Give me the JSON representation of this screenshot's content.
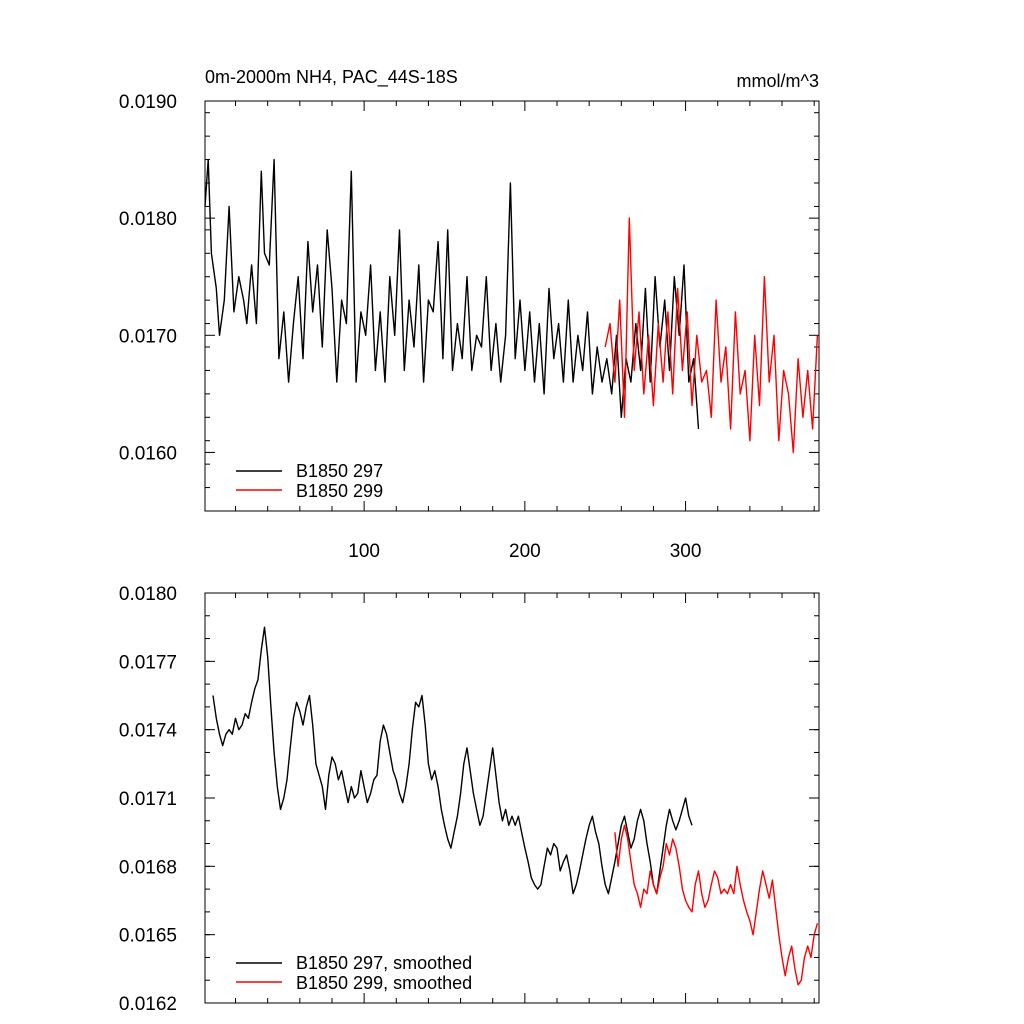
{
  "chart_data": [
    {
      "type": "line",
      "title": "0m-2000m NH4, PAC_44S-18S",
      "units": "mmol/m^3",
      "xlim": [
        1,
        383
      ],
      "ylim": [
        0.0155,
        0.019
      ],
      "x_ticks": [
        100,
        200,
        300
      ],
      "x_tick_labels": [
        "100",
        "200",
        "300"
      ],
      "y_ticks": [
        0.016,
        0.017,
        0.018,
        0.019
      ],
      "y_tick_labels": [
        "0.0160",
        "0.0170",
        "0.0180",
        "0.0190"
      ],
      "legend_placement": "bottom-left",
      "series": [
        {
          "name": "B1850 297",
          "color": "#000000",
          "x": [
            1,
            3,
            5,
            8,
            10,
            13,
            16,
            19,
            22,
            25,
            27,
            30,
            33,
            36,
            38,
            41,
            44,
            47,
            50,
            53,
            56,
            59,
            62,
            65,
            68,
            71,
            74,
            77,
            80,
            83,
            86,
            89,
            92,
            95,
            98,
            101,
            104,
            107,
            110,
            113,
            116,
            119,
            122,
            125,
            128,
            131,
            134,
            137,
            140,
            143,
            146,
            149,
            152,
            155,
            158,
            161,
            164,
            167,
            170,
            173,
            176,
            179,
            182,
            185,
            188,
            191,
            194,
            197,
            200,
            203,
            206,
            209,
            212,
            215,
            218,
            221,
            224,
            227,
            230,
            233,
            236,
            239,
            242,
            245,
            248,
            251,
            254,
            257,
            260,
            263,
            266,
            269,
            272,
            275,
            278,
            281,
            284,
            287,
            290,
            293,
            296,
            299,
            302,
            305,
            308
          ],
          "values": [
            0.0181,
            0.0185,
            0.0177,
            0.0174,
            0.017,
            0.0173,
            0.0181,
            0.0172,
            0.0175,
            0.0173,
            0.0171,
            0.0176,
            0.0171,
            0.0184,
            0.0177,
            0.0176,
            0.0185,
            0.0168,
            0.0172,
            0.0166,
            0.0171,
            0.0175,
            0.0168,
            0.0178,
            0.0172,
            0.0176,
            0.0169,
            0.0179,
            0.0174,
            0.0166,
            0.0173,
            0.0171,
            0.0184,
            0.0166,
            0.0172,
            0.017,
            0.0176,
            0.0167,
            0.0172,
            0.0166,
            0.0175,
            0.017,
            0.0179,
            0.0167,
            0.0173,
            0.0169,
            0.0176,
            0.0166,
            0.0173,
            0.0172,
            0.0178,
            0.0168,
            0.0179,
            0.0167,
            0.0171,
            0.0168,
            0.0175,
            0.0167,
            0.017,
            0.0169,
            0.0175,
            0.0167,
            0.0171,
            0.0166,
            0.017,
            0.0183,
            0.0168,
            0.0173,
            0.0167,
            0.0172,
            0.0166,
            0.0171,
            0.0165,
            0.0174,
            0.0168,
            0.0171,
            0.0166,
            0.0173,
            0.0166,
            0.017,
            0.0167,
            0.0172,
            0.0165,
            0.0169,
            0.0166,
            0.0168,
            0.0165,
            0.017,
            0.0163,
            0.0168,
            0.0166,
            0.0171,
            0.0167,
            0.0174,
            0.0166,
            0.0175,
            0.0169,
            0.0173,
            0.0167,
            0.0175,
            0.017,
            0.0176,
            0.0166,
            0.0168,
            0.0162
          ]
        },
        {
          "name": "B1850 299",
          "color": "#ff0000",
          "x": [
            250,
            253,
            256,
            259,
            262,
            265,
            268,
            271,
            274,
            277,
            280,
            283,
            286,
            289,
            292,
            295,
            298,
            301,
            304,
            307,
            310,
            313,
            316,
            319,
            322,
            325,
            328,
            331,
            334,
            337,
            340,
            343,
            346,
            349,
            352,
            355,
            358,
            361,
            364,
            367,
            370,
            373,
            376,
            379,
            382
          ],
          "values": [
            0.0169,
            0.0171,
            0.0166,
            0.0173,
            0.0163,
            0.018,
            0.0167,
            0.0172,
            0.0165,
            0.017,
            0.0164,
            0.0171,
            0.0166,
            0.0172,
            0.0165,
            0.0174,
            0.0167,
            0.0172,
            0.0164,
            0.017,
            0.0166,
            0.0167,
            0.0163,
            0.0173,
            0.0166,
            0.0169,
            0.0162,
            0.0172,
            0.0165,
            0.0167,
            0.0161,
            0.017,
            0.0164,
            0.0175,
            0.0166,
            0.017,
            0.0161,
            0.0167,
            0.0165,
            0.016,
            0.0168,
            0.0163,
            0.0167,
            0.0162,
            0.017
          ]
        }
      ]
    },
    {
      "type": "line",
      "title": "",
      "xlim": [
        1,
        383
      ],
      "ylim": [
        0.0162,
        0.018
      ],
      "x_ticks": [
        100,
        200,
        300
      ],
      "y_ticks": [
        0.0162,
        0.0165,
        0.0168,
        0.0171,
        0.0174,
        0.0177,
        0.018
      ],
      "y_tick_labels": [
        "0.0162",
        "0.0165",
        "0.0168",
        "0.0171",
        "0.0174",
        "0.0177",
        "0.0180"
      ],
      "legend_placement": "bottom-left",
      "series": [
        {
          "name": "B1850 297, smoothed",
          "color": "#000000",
          "x": [
            6,
            8,
            10,
            12,
            14,
            16,
            18,
            20,
            22,
            24,
            26,
            28,
            30,
            32,
            34,
            36,
            38,
            40,
            42,
            44,
            46,
            48,
            50,
            52,
            54,
            56,
            58,
            60,
            62,
            64,
            66,
            68,
            70,
            72,
            74,
            76,
            78,
            80,
            82,
            84,
            86,
            88,
            90,
            92,
            94,
            96,
            98,
            100,
            102,
            104,
            106,
            108,
            110,
            112,
            114,
            116,
            118,
            120,
            122,
            124,
            126,
            128,
            130,
            132,
            134,
            136,
            138,
            140,
            142,
            144,
            146,
            148,
            150,
            152,
            154,
            156,
            158,
            160,
            162,
            164,
            166,
            168,
            170,
            172,
            174,
            176,
            178,
            180,
            182,
            184,
            186,
            188,
            190,
            192,
            194,
            196,
            198,
            200,
            202,
            204,
            206,
            208,
            210,
            212,
            214,
            216,
            218,
            220,
            222,
            224,
            226,
            228,
            230,
            232,
            234,
            236,
            238,
            240,
            242,
            244,
            246,
            248,
            250,
            252,
            254,
            256,
            258,
            260,
            262,
            264,
            266,
            268,
            270,
            272,
            274,
            276,
            278,
            280,
            282,
            284,
            286,
            288,
            290,
            292,
            294,
            296,
            298,
            300,
            302,
            304
          ],
          "values": [
            0.01755,
            0.01745,
            0.01738,
            0.01733,
            0.01738,
            0.0174,
            0.01738,
            0.01745,
            0.0174,
            0.01742,
            0.01747,
            0.01745,
            0.01752,
            0.01758,
            0.01762,
            0.01775,
            0.01785,
            0.01772,
            0.0175,
            0.0173,
            0.01715,
            0.01705,
            0.0171,
            0.01718,
            0.01732,
            0.01745,
            0.01752,
            0.01748,
            0.01742,
            0.0175,
            0.01755,
            0.01742,
            0.01725,
            0.0172,
            0.01715,
            0.01705,
            0.0172,
            0.01728,
            0.01725,
            0.01718,
            0.01722,
            0.01715,
            0.01708,
            0.01715,
            0.0171,
            0.01712,
            0.01722,
            0.01715,
            0.01708,
            0.01712,
            0.01718,
            0.0172,
            0.01735,
            0.01742,
            0.01738,
            0.0173,
            0.01722,
            0.01718,
            0.01712,
            0.01708,
            0.01715,
            0.01725,
            0.0174,
            0.01752,
            0.0175,
            0.01755,
            0.01742,
            0.01725,
            0.01718,
            0.01722,
            0.01715,
            0.01705,
            0.01698,
            0.01692,
            0.01688,
            0.01695,
            0.01702,
            0.01712,
            0.01725,
            0.01732,
            0.01722,
            0.01712,
            0.01705,
            0.01698,
            0.01702,
            0.01712,
            0.01722,
            0.01732,
            0.0172,
            0.01708,
            0.017,
            0.01705,
            0.01698,
            0.01702,
            0.01698,
            0.01702,
            0.01695,
            0.01688,
            0.01682,
            0.01675,
            0.01672,
            0.0167,
            0.01672,
            0.0168,
            0.01688,
            0.01685,
            0.0169,
            0.01688,
            0.01678,
            0.01682,
            0.01685,
            0.01678,
            0.01668,
            0.01672,
            0.01678,
            0.01685,
            0.01692,
            0.01698,
            0.01702,
            0.01695,
            0.0169,
            0.0168,
            0.01672,
            0.01668,
            0.01675,
            0.01682,
            0.0169,
            0.01698,
            0.01702,
            0.01695,
            0.01688,
            0.01692,
            0.017,
            0.01705,
            0.017,
            0.0169,
            0.01682,
            0.01672,
            0.01668,
            0.01678,
            0.01688,
            0.01698,
            0.01705,
            0.017,
            0.01696,
            0.017,
            0.01705,
            0.0171,
            0.01702,
            0.01698
          ]
        },
        {
          "name": "B1850 299, smoothed",
          "color": "#ff0000",
          "x": [
            256,
            258,
            260,
            262,
            264,
            266,
            268,
            270,
            272,
            274,
            276,
            278,
            280,
            282,
            284,
            286,
            288,
            290,
            292,
            294,
            296,
            298,
            300,
            302,
            304,
            306,
            308,
            310,
            312,
            314,
            316,
            318,
            320,
            322,
            324,
            326,
            328,
            330,
            332,
            334,
            336,
            338,
            340,
            342,
            344,
            346,
            348,
            350,
            352,
            354,
            356,
            358,
            360,
            362,
            364,
            366,
            368,
            370,
            372,
            374,
            376,
            378,
            380,
            382
          ],
          "values": [
            0.01695,
            0.0168,
            0.01692,
            0.01698,
            0.01692,
            0.01682,
            0.01672,
            0.01668,
            0.01662,
            0.0167,
            0.01668,
            0.01678,
            0.01672,
            0.01668,
            0.01675,
            0.0168,
            0.0169,
            0.01685,
            0.01692,
            0.01688,
            0.0168,
            0.0167,
            0.01665,
            0.01662,
            0.0166,
            0.01672,
            0.01678,
            0.01668,
            0.01662,
            0.01665,
            0.01672,
            0.01678,
            0.01675,
            0.01668,
            0.0167,
            0.01668,
            0.01672,
            0.01668,
            0.0168,
            0.01672,
            0.01665,
            0.0166,
            0.01656,
            0.0165,
            0.0166,
            0.0167,
            0.01678,
            0.01672,
            0.01666,
            0.01674,
            0.01662,
            0.0165,
            0.0164,
            0.01632,
            0.0164,
            0.01645,
            0.01635,
            0.01628,
            0.0163,
            0.0164,
            0.01645,
            0.0164,
            0.0165,
            0.01655
          ]
        }
      ]
    }
  ]
}
